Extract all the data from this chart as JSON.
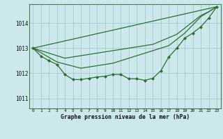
{
  "title": "Graphe pression niveau de la mer (hPa)",
  "background_color": "#cce8ec",
  "grid_color": "#aacdd4",
  "line_color": "#2d6e2d",
  "xlim": [
    -0.5,
    23.5
  ],
  "ylim": [
    1010.6,
    1014.75
  ],
  "yticks": [
    1011,
    1012,
    1013,
    1014
  ],
  "x_ticks": [
    0,
    1,
    2,
    3,
    4,
    5,
    6,
    7,
    8,
    9,
    10,
    11,
    12,
    13,
    14,
    15,
    16,
    17,
    18,
    19,
    20,
    21,
    22,
    23
  ],
  "series": [
    {
      "x": [
        0,
        23
      ],
      "y": [
        1013.0,
        1014.65
      ],
      "has_markers": false
    },
    {
      "x": [
        0,
        4,
        10,
        15,
        18,
        21,
        22,
        23
      ],
      "y": [
        1013.0,
        1012.6,
        1012.9,
        1013.15,
        1013.55,
        1014.3,
        1014.45,
        1014.65
      ],
      "has_markers": false
    },
    {
      "x": [
        0,
        3,
        6,
        10,
        15,
        17,
        19,
        21,
        23
      ],
      "y": [
        1013.0,
        1012.45,
        1012.2,
        1012.4,
        1012.9,
        1013.1,
        1013.6,
        1014.25,
        1014.65
      ],
      "has_markers": false
    },
    {
      "x": [
        0,
        1,
        2,
        3,
        4,
        5,
        6,
        7,
        8,
        9,
        10,
        11,
        12,
        13,
        14,
        15,
        16,
        17,
        18,
        19,
        20,
        21,
        22,
        23
      ],
      "y": [
        1013.0,
        1012.68,
        1012.5,
        1012.35,
        1011.95,
        1011.75,
        1011.75,
        1011.8,
        1011.85,
        1011.88,
        1011.95,
        1011.95,
        1011.78,
        1011.78,
        1011.72,
        1011.8,
        1012.1,
        1012.65,
        1013.0,
        1013.4,
        1013.6,
        1013.85,
        1014.2,
        1014.65
      ],
      "has_markers": true
    }
  ],
  "figsize": [
    3.2,
    2.0
  ],
  "dpi": 100
}
